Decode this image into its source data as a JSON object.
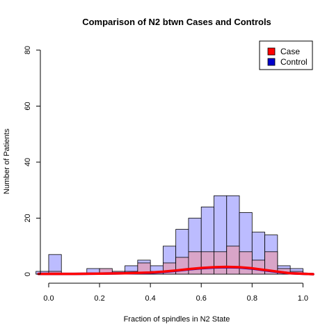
{
  "chart_data": {
    "type": "histogram",
    "title": "Comparison of N2 btwn Cases and Controls",
    "xlabel": "Fraction of spindles in N2 State",
    "ylabel": "Number of Patients",
    "xlim": [
      -0.03,
      1.04
    ],
    "ylim": [
      0,
      80
    ],
    "x_ticks": [
      0.0,
      0.2,
      0.4,
      0.6,
      0.8,
      1.0
    ],
    "x_tick_labels": [
      "0.0",
      "0.2",
      "0.4",
      "0.6",
      "0.8",
      "1.0"
    ],
    "y_ticks": [
      0,
      20,
      40,
      60,
      80
    ],
    "y_tick_labels": [
      "0",
      "20",
      "40",
      "60",
      "80"
    ],
    "grid": false,
    "legend": {
      "position": "top-right",
      "entries": [
        {
          "label": "Case",
          "color": "#ff0000"
        },
        {
          "label": "Control",
          "color": "#0000cc"
        }
      ]
    },
    "bins": [
      [
        -0.05,
        0.0
      ],
      [
        0.0,
        0.05
      ],
      [
        0.05,
        0.1
      ],
      [
        0.1,
        0.15
      ],
      [
        0.15,
        0.2
      ],
      [
        0.2,
        0.25
      ],
      [
        0.25,
        0.3
      ],
      [
        0.3,
        0.35
      ],
      [
        0.35,
        0.4
      ],
      [
        0.4,
        0.45
      ],
      [
        0.45,
        0.5
      ],
      [
        0.5,
        0.55
      ],
      [
        0.55,
        0.6
      ],
      [
        0.6,
        0.65
      ],
      [
        0.65,
        0.7
      ],
      [
        0.7,
        0.75
      ],
      [
        0.75,
        0.8
      ],
      [
        0.8,
        0.85
      ],
      [
        0.85,
        0.9
      ],
      [
        0.9,
        0.95
      ],
      [
        0.95,
        1.0
      ],
      [
        1.0,
        1.05
      ]
    ],
    "series": [
      {
        "name": "Control",
        "fill": "#bcbcff",
        "values": [
          1,
          7,
          0,
          0,
          2,
          1,
          1,
          3,
          5,
          3,
          10,
          16,
          20,
          24,
          28,
          28,
          22,
          15,
          14,
          3,
          2,
          0
        ]
      },
      {
        "name": "Case",
        "fill": "#d9a5c8",
        "values": [
          0,
          1,
          0,
          0,
          0,
          2,
          1,
          1,
          4,
          1,
          4,
          6,
          8,
          8,
          8,
          10,
          8,
          5,
          8,
          2,
          1,
          0
        ]
      }
    ],
    "density_lines": [
      {
        "name": "Control",
        "color": "#0000cc",
        "x": [
          -0.04,
          0.1,
          0.2,
          0.3,
          0.4,
          0.45,
          0.5,
          0.55,
          0.6,
          0.65,
          0.7,
          0.75,
          0.8,
          0.85,
          0.9,
          0.95,
          1.04
        ],
        "y": [
          0.1,
          0.1,
          0.2,
          0.3,
          0.5,
          0.8,
          1.2,
          1.7,
          2.1,
          2.4,
          2.5,
          2.4,
          2.0,
          1.4,
          0.8,
          0.3,
          0.0
        ]
      },
      {
        "name": "Case",
        "color": "#ff0000",
        "x": [
          -0.04,
          0.1,
          0.2,
          0.3,
          0.4,
          0.45,
          0.5,
          0.55,
          0.6,
          0.65,
          0.7,
          0.75,
          0.8,
          0.85,
          0.9,
          0.95,
          1.04
        ],
        "y": [
          0.1,
          0.1,
          0.2,
          0.3,
          0.6,
          0.9,
          1.3,
          1.8,
          2.2,
          2.5,
          2.6,
          2.5,
          2.1,
          1.5,
          0.9,
          0.3,
          0.0
        ]
      }
    ]
  }
}
